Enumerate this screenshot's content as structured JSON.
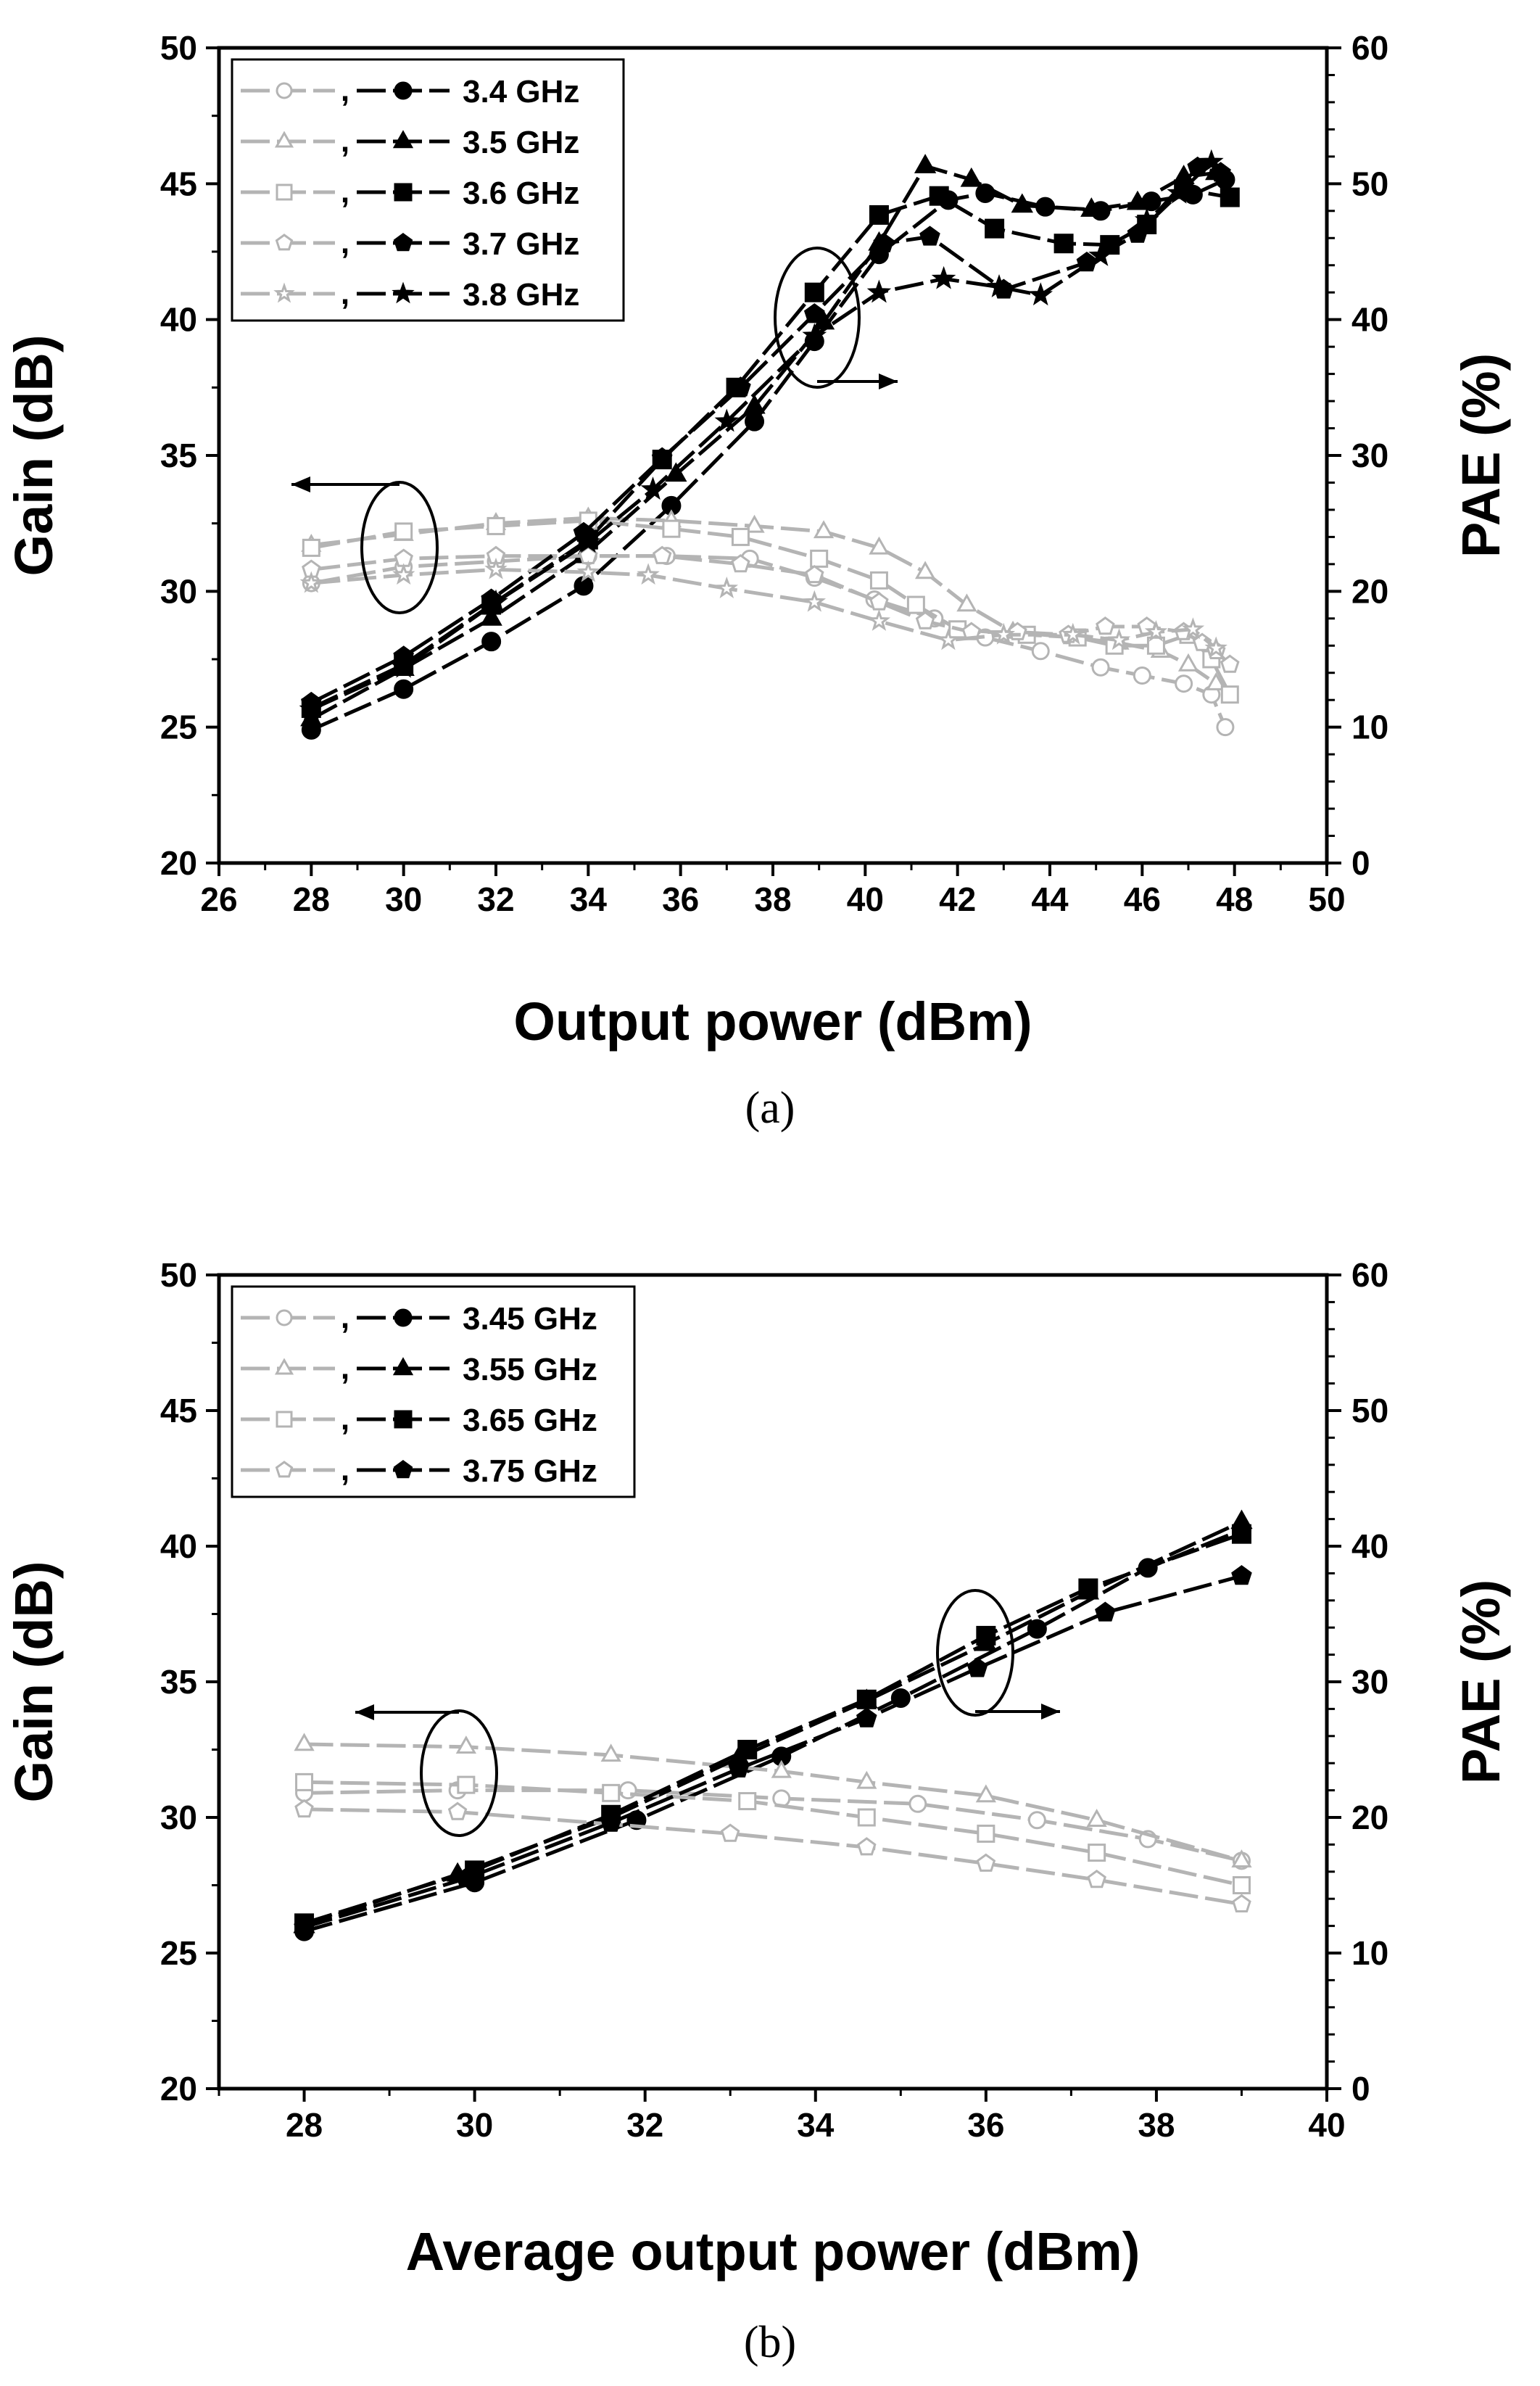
{
  "chart_data": [
    {
      "type": "line",
      "panel_label": "(a)",
      "xlabel": "Output power (dBm)",
      "ylabel": "Gain (dB)",
      "y2label": "PAE (%)",
      "xlim": [
        26,
        50
      ],
      "ylim": [
        20,
        50
      ],
      "y2lim": [
        0,
        60
      ],
      "xticks": [
        "26",
        "28",
        "30",
        "32",
        "34",
        "36",
        "38",
        "40",
        "42",
        "44",
        "46",
        "48",
        "50"
      ],
      "yticks": [
        "20",
        "25",
        "30",
        "35",
        "40",
        "45",
        "50"
      ],
      "y2ticks": [
        "0",
        "10",
        "20",
        "30",
        "40",
        "50",
        "60"
      ],
      "legend_position": "top-left",
      "legend_sep": ",",
      "series": [
        {
          "name": "3.4 GHz",
          "marker": "circle",
          "gain": [
            [
              28,
              30.3
            ],
            [
              30,
              30.9
            ],
            [
              32,
              31.1
            ],
            [
              34,
              31.3
            ],
            [
              35.7,
              31.3
            ],
            [
              37.5,
              31.2
            ],
            [
              38.9,
              30.5
            ],
            [
              40.2,
              29.7
            ],
            [
              41.5,
              29.0
            ],
            [
              42.6,
              28.3
            ],
            [
              43.8,
              27.8
            ],
            [
              45.1,
              27.2
            ],
            [
              46,
              26.9
            ],
            [
              46.9,
              26.6
            ],
            [
              47.5,
              26.2
            ],
            [
              47.8,
              25.0
            ]
          ],
          "pae": [
            [
              28,
              9.8
            ],
            [
              30,
              12.8
            ],
            [
              31.9,
              16.3
            ],
            [
              33.9,
              20.4
            ],
            [
              35.8,
              26.3
            ],
            [
              37.6,
              32.5
            ],
            [
              38.9,
              38.4
            ],
            [
              40.3,
              44.8
            ],
            [
              41.8,
              48.8
            ],
            [
              42.6,
              49.3
            ],
            [
              43.9,
              48.3
            ],
            [
              45.1,
              48.0
            ],
            [
              46.2,
              48.7
            ],
            [
              47.1,
              49.2
            ],
            [
              47.8,
              50.3
            ]
          ]
        },
        {
          "name": "3.5 GHz",
          "marker": "triangle",
          "gain": [
            [
              28,
              31.7
            ],
            [
              30,
              32.1
            ],
            [
              32,
              32.5
            ],
            [
              34,
              32.7
            ],
            [
              35.8,
              32.6
            ],
            [
              37.6,
              32.4
            ],
            [
              39.1,
              32.2
            ],
            [
              40.3,
              31.6
            ],
            [
              41.3,
              30.7
            ],
            [
              42.2,
              29.5
            ],
            [
              43.2,
              28.5
            ],
            [
              44.5,
              28.3
            ],
            [
              45.5,
              28.1
            ],
            [
              46.4,
              27.8
            ],
            [
              47,
              27.3
            ],
            [
              47.6,
              26.6
            ]
          ],
          "pae": [
            [
              28,
              10.6
            ],
            [
              30,
              14.3
            ],
            [
              31.9,
              18.0
            ],
            [
              33.9,
              22.6
            ],
            [
              35.9,
              28.6
            ],
            [
              37.6,
              33.6
            ],
            [
              39.1,
              39.8
            ],
            [
              40.3,
              45.6
            ],
            [
              41.3,
              51.3
            ],
            [
              42.3,
              50.3
            ],
            [
              43.4,
              48.4
            ],
            [
              44.9,
              48.1
            ],
            [
              45.9,
              48.6
            ],
            [
              46.9,
              50.5
            ],
            [
              47.6,
              50.8
            ]
          ]
        },
        {
          "name": "3.6 GHz",
          "marker": "square",
          "gain": [
            [
              28,
              31.6
            ],
            [
              30,
              32.2
            ],
            [
              32,
              32.4
            ],
            [
              34,
              32.6
            ],
            [
              35.8,
              32.3
            ],
            [
              37.3,
              32.0
            ],
            [
              39,
              31.2
            ],
            [
              40.3,
              30.4
            ],
            [
              41.1,
              29.5
            ],
            [
              42,
              28.6
            ],
            [
              43.5,
              28.4
            ],
            [
              44.6,
              28.3
            ],
            [
              45.4,
              28.0
            ],
            [
              46.3,
              28.0
            ],
            [
              47,
              28.4
            ],
            [
              47.5,
              27.5
            ],
            [
              47.9,
              26.2
            ]
          ],
          "pae": [
            [
              28,
              11.4
            ],
            [
              30,
              14.6
            ],
            [
              31.9,
              19.0
            ],
            [
              34,
              23.8
            ],
            [
              35.6,
              29.7
            ],
            [
              37.2,
              35.0
            ],
            [
              38.9,
              42.0
            ],
            [
              40.3,
              47.7
            ],
            [
              41.6,
              49.1
            ],
            [
              42.8,
              46.7
            ],
            [
              44.3,
              45.6
            ],
            [
              45.3,
              45.5
            ],
            [
              46.1,
              47.0
            ],
            [
              46.9,
              49.6
            ],
            [
              47.9,
              49.0
            ]
          ]
        },
        {
          "name": "3.7 GHz",
          "marker": "pentagon",
          "gain": [
            [
              28,
              30.8
            ],
            [
              30,
              31.2
            ],
            [
              32,
              31.3
            ],
            [
              34,
              31.3
            ],
            [
              35.6,
              31.3
            ],
            [
              37.3,
              31.0
            ],
            [
              38.9,
              30.6
            ],
            [
              40.3,
              29.6
            ],
            [
              41.3,
              28.9
            ],
            [
              42.3,
              28.5
            ],
            [
              43.3,
              28.5
            ],
            [
              44.4,
              28.4
            ],
            [
              45.2,
              28.7
            ],
            [
              46.1,
              28.7
            ],
            [
              46.9,
              28.5
            ],
            [
              47.3,
              28.1
            ],
            [
              47.6,
              27.8
            ],
            [
              47.9,
              27.3
            ]
          ],
          "pae": [
            [
              28,
              11.8
            ],
            [
              30,
              15.2
            ],
            [
              31.9,
              19.4
            ],
            [
              33.9,
              24.3
            ],
            [
              35.6,
              29.8
            ],
            [
              37.3,
              35.0
            ],
            [
              38.9,
              40.4
            ],
            [
              40.4,
              45.6
            ],
            [
              41.4,
              46.1
            ],
            [
              43,
              42.2
            ],
            [
              44.8,
              44.2
            ],
            [
              45.9,
              46.3
            ],
            [
              47.2,
              51.2
            ],
            [
              47.7,
              50.8
            ]
          ]
        },
        {
          "name": "3.8 GHz",
          "marker": "star",
          "gain": [
            [
              28,
              30.3
            ],
            [
              30,
              30.6
            ],
            [
              32,
              30.8
            ],
            [
              34,
              30.7
            ],
            [
              35.3,
              30.6
            ],
            [
              37,
              30.1
            ],
            [
              38.9,
              29.6
            ],
            [
              40.3,
              28.9
            ],
            [
              41.8,
              28.2
            ],
            [
              43,
              28.4
            ],
            [
              44.5,
              28.4
            ],
            [
              45.5,
              28.2
            ],
            [
              46.3,
              28.5
            ],
            [
              47.1,
              28.6
            ],
            [
              47.6,
              27.9
            ]
          ],
          "pae": [
            [
              28,
              11.3
            ],
            [
              30,
              14.4
            ],
            [
              32,
              19.2
            ],
            [
              34,
              23.6
            ],
            [
              35.4,
              27.5
            ],
            [
              37,
              32.5
            ],
            [
              38.9,
              38.8
            ],
            [
              40.3,
              42.0
            ],
            [
              41.7,
              43.0
            ],
            [
              42.9,
              42.4
            ],
            [
              43.8,
              41.8
            ],
            [
              45.1,
              44.7
            ],
            [
              46.1,
              47.3
            ],
            [
              46.8,
              49.3
            ],
            [
              47.5,
              51.6
            ]
          ]
        }
      ]
    },
    {
      "type": "line",
      "panel_label": "(b)",
      "xlabel": "Average output power (dBm)",
      "ylabel": "Gain (dB)",
      "y2label": "PAE (%)",
      "xlim": [
        27,
        40
      ],
      "ylim": [
        20,
        50
      ],
      "y2lim": [
        0,
        60
      ],
      "xticks": [
        "28",
        "30",
        "32",
        "34",
        "36",
        "38",
        "40"
      ],
      "yticks": [
        "20",
        "25",
        "30",
        "35",
        "40",
        "45",
        "50"
      ],
      "y2ticks": [
        "0",
        "10",
        "20",
        "30",
        "40",
        "50",
        "60"
      ],
      "legend_position": "top-left",
      "legend_sep": ",",
      "series": [
        {
          "name": "3.45 GHz",
          "marker": "circle",
          "gain": [
            [
              28,
              30.9
            ],
            [
              29.8,
              31.0
            ],
            [
              31.8,
              31.0
            ],
            [
              33.6,
              30.7
            ],
            [
              35.2,
              30.5
            ],
            [
              36.6,
              29.9
            ],
            [
              37.9,
              29.2
            ],
            [
              39,
              28.4
            ]
          ],
          "pae": [
            [
              28,
              11.6
            ],
            [
              30,
              15.2
            ],
            [
              31.9,
              19.8
            ],
            [
              33.6,
              24.5
            ],
            [
              35,
              28.8
            ],
            [
              36.6,
              33.9
            ],
            [
              37.9,
              38.4
            ],
            [
              39,
              41.2
            ]
          ]
        },
        {
          "name": "3.55 GHz",
          "marker": "triangle",
          "gain": [
            [
              28,
              32.7
            ],
            [
              29.9,
              32.6
            ],
            [
              31.6,
              32.3
            ],
            [
              33.6,
              31.7
            ],
            [
              34.6,
              31.3
            ],
            [
              36,
              30.8
            ],
            [
              37.3,
              29.9
            ],
            [
              39,
              28.4
            ]
          ],
          "pae": [
            [
              28,
              12.0
            ],
            [
              29.8,
              15.8
            ],
            [
              31.6,
              20.0
            ],
            [
              33.1,
              24.4
            ],
            [
              34.6,
              28.6
            ],
            [
              36,
              32.8
            ],
            [
              37.2,
              36.6
            ],
            [
              39,
              41.8
            ]
          ]
        },
        {
          "name": "3.65 GHz",
          "marker": "square",
          "gain": [
            [
              28,
              31.3
            ],
            [
              29.9,
              31.2
            ],
            [
              31.6,
              30.9
            ],
            [
              33.2,
              30.6
            ],
            [
              34.6,
              30.0
            ],
            [
              36,
              29.4
            ],
            [
              37.3,
              28.7
            ],
            [
              39,
              27.5
            ]
          ],
          "pae": [
            [
              28,
              12.2
            ],
            [
              30,
              16.1
            ],
            [
              31.6,
              20.2
            ],
            [
              33.2,
              25.0
            ],
            [
              34.6,
              28.7
            ],
            [
              36,
              33.4
            ],
            [
              37.2,
              36.9
            ],
            [
              39,
              40.9
            ]
          ]
        },
        {
          "name": "3.75 GHz",
          "marker": "pentagon",
          "gain": [
            [
              28,
              30.3
            ],
            [
              29.8,
              30.2
            ],
            [
              33,
              29.4
            ],
            [
              34.6,
              28.9
            ],
            [
              36,
              28.3
            ],
            [
              37.3,
              27.7
            ],
            [
              39,
              26.8
            ]
          ],
          "pae": [
            [
              28,
              11.9
            ],
            [
              29.9,
              15.5
            ],
            [
              31.6,
              19.6
            ],
            [
              33.1,
              23.6
            ],
            [
              34.6,
              27.3
            ],
            [
              35.9,
              31.0
            ],
            [
              37.4,
              35.1
            ],
            [
              39,
              37.8
            ]
          ]
        }
      ]
    }
  ]
}
